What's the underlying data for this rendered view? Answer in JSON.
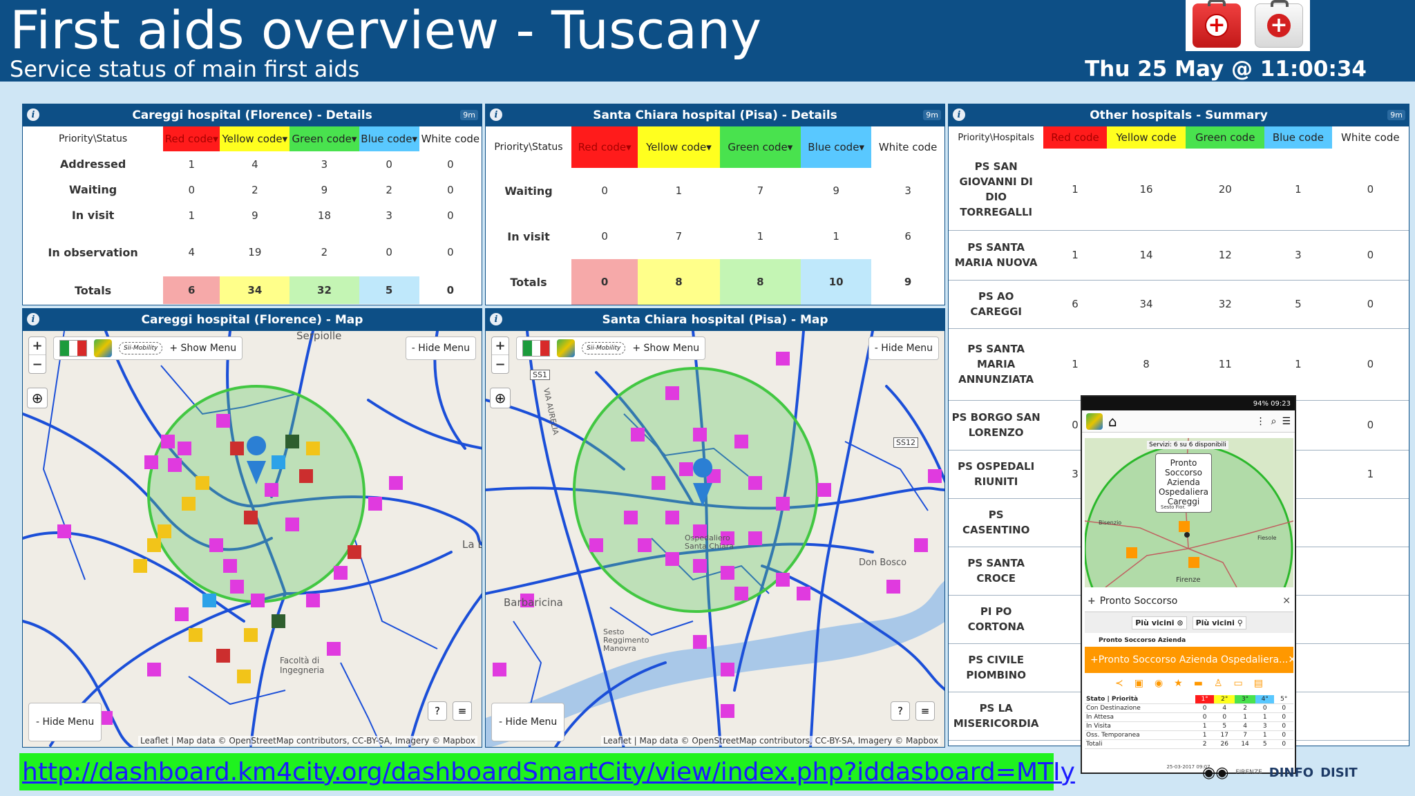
{
  "header": {
    "title": "First aids overview - Tuscany",
    "subtitle": "Service status of main first aids",
    "datetime": "Thu 25 May @ 11:00:34"
  },
  "careggi_details": {
    "title": "Careggi hospital (Florence) - Details",
    "timer": "9m",
    "corner": "Priority\\Status",
    "columns": [
      "Red code",
      "Yellow code",
      "Green code",
      "Blue code",
      "White code"
    ],
    "rows": [
      {
        "label": "Addressed",
        "values": [
          "1",
          "4",
          "3",
          "0",
          "0"
        ]
      },
      {
        "label": "Waiting",
        "values": [
          "0",
          "2",
          "9",
          "2",
          "0"
        ]
      },
      {
        "label": "In visit",
        "values": [
          "1",
          "9",
          "18",
          "3",
          "0"
        ]
      },
      {
        "label": "In observation",
        "values": [
          "4",
          "19",
          "2",
          "0",
          "0"
        ]
      }
    ],
    "totals": {
      "label": "Totals",
      "values": [
        "6",
        "34",
        "32",
        "5",
        "0"
      ]
    }
  },
  "santachiara_details": {
    "title": "Santa Chiara hospital (Pisa) - Details",
    "timer": "9m",
    "corner": "Priority\\Status",
    "columns": [
      "Red code",
      "Yellow code",
      "Green code",
      "Blue code",
      "White code"
    ],
    "rows": [
      {
        "label": "Waiting",
        "values": [
          "0",
          "1",
          "7",
          "9",
          "3"
        ]
      },
      {
        "label": "In visit",
        "values": [
          "0",
          "7",
          "1",
          "1",
          "6"
        ]
      }
    ],
    "totals": {
      "label": "Totals",
      "values": [
        "0",
        "8",
        "8",
        "10",
        "9"
      ]
    }
  },
  "other_summary": {
    "title": "Other hospitals - Summary",
    "timer": "9m",
    "corner": "Priority\\Hospitals",
    "columns": [
      "Red code",
      "Yellow code",
      "Green code",
      "Blue code",
      "White code"
    ],
    "rows": [
      {
        "name": "PS SAN GIOVANNI DI DIO TORREGALLI",
        "values": [
          "1",
          "16",
          "20",
          "1",
          "0"
        ]
      },
      {
        "name": "PS SANTA MARIA NUOVA",
        "values": [
          "1",
          "14",
          "12",
          "3",
          "0"
        ]
      },
      {
        "name": "PS AO CAREGGI",
        "values": [
          "6",
          "34",
          "32",
          "5",
          "0"
        ]
      },
      {
        "name": "PS SANTA MARIA ANNUNZIATA",
        "values": [
          "1",
          "8",
          "11",
          "1",
          "0"
        ]
      },
      {
        "name": "PS BORGO SAN LORENZO",
        "values": [
          "0",
          "",
          "",
          "",
          "0"
        ]
      },
      {
        "name": "PS OSPEDALI RIUNITI",
        "values": [
          "3",
          "",
          "",
          "",
          "1"
        ]
      },
      {
        "name": "PS CASENTINO",
        "values": [
          "",
          "",
          "",
          "",
          ""
        ]
      },
      {
        "name": "PS SANTA CROCE",
        "values": [
          "",
          "",
          "",
          "",
          ""
        ]
      },
      {
        "name": "PI PO CORTONA",
        "values": [
          "",
          "",
          "",
          "",
          ""
        ]
      },
      {
        "name": "PS CIVILE PIOMBINO",
        "values": [
          "",
          "",
          "",
          "",
          ""
        ]
      },
      {
        "name": "PS LA MISERICORDIA",
        "values": [
          "",
          "",
          "",
          "",
          ""
        ]
      }
    ]
  },
  "careggi_map": {
    "title": "Careggi hospital (Florence) - Map",
    "show_menu": "+ Show Menu",
    "hide_menu": "- Hide Menu",
    "sii_mobility": "Sii-Mobility",
    "attribution": "Leaflet | Map data © OpenStreetMap contributors, CC-BY-SA, Imagery © Mapbox",
    "place_labels": [
      "Serpiolle",
      "La L",
      "Facoltà di Ingegneria"
    ]
  },
  "pisa_map": {
    "title": "Santa Chiara hospital (Pisa) - Map",
    "show_menu": "+ Show Menu",
    "hide_menu": "- Hide Menu",
    "sii_mobility": "Sii-Mobility",
    "attribution": "Leaflet | Map data © OpenStreetMap contributors, CC-BY-SA, Imagery © Mapbox",
    "place_labels": [
      "Barbaricina",
      "VIA AURELIA",
      "Sesto Reggimento Manovra",
      "Don Bosco",
      "SS1",
      "SS12",
      "Ospedaliero Santa Chiara"
    ]
  },
  "phone": {
    "status": "94% 09:23",
    "services_note": "Servizi: 6 su 6 disponibili",
    "bubble": "Pronto Soccorso Azienda Ospedaliera Careggi",
    "map_labels": [
      "Firenze",
      "Fiesole",
      "Bisenzio",
      "Sesto Fior."
    ],
    "category": "Pronto Soccorso",
    "nearby1": "Più vicini",
    "nearby2": "Più vicini",
    "list_item": "Pronto Soccorso Azienda",
    "selected": "Pronto Soccorso Azienda Ospedaliera...",
    "table_head": [
      "Stato | Priorità",
      "1°",
      "2°",
      "3°",
      "4°",
      "5°"
    ],
    "table_rows": [
      [
        "Con Destinazione",
        "0",
        "4",
        "2",
        "0",
        "0"
      ],
      [
        "In Attesa",
        "0",
        "0",
        "1",
        "1",
        "0"
      ],
      [
        "In Visita",
        "1",
        "5",
        "4",
        "3",
        "0"
      ],
      [
        "Oss. Temporanea",
        "1",
        "17",
        "7",
        "1",
        "0"
      ],
      [
        "Totali",
        "2",
        "26",
        "14",
        "5",
        "0"
      ]
    ],
    "table_date": "25-03-2017 09:07"
  },
  "footer": {
    "url": "http://dashboard.km4city.org/dashboardSmartCity/view/index.php?iddasboard=MTIy",
    "logo1": "DINFO",
    "logo2": "DISIT",
    "logo3": "FIRENZE"
  }
}
